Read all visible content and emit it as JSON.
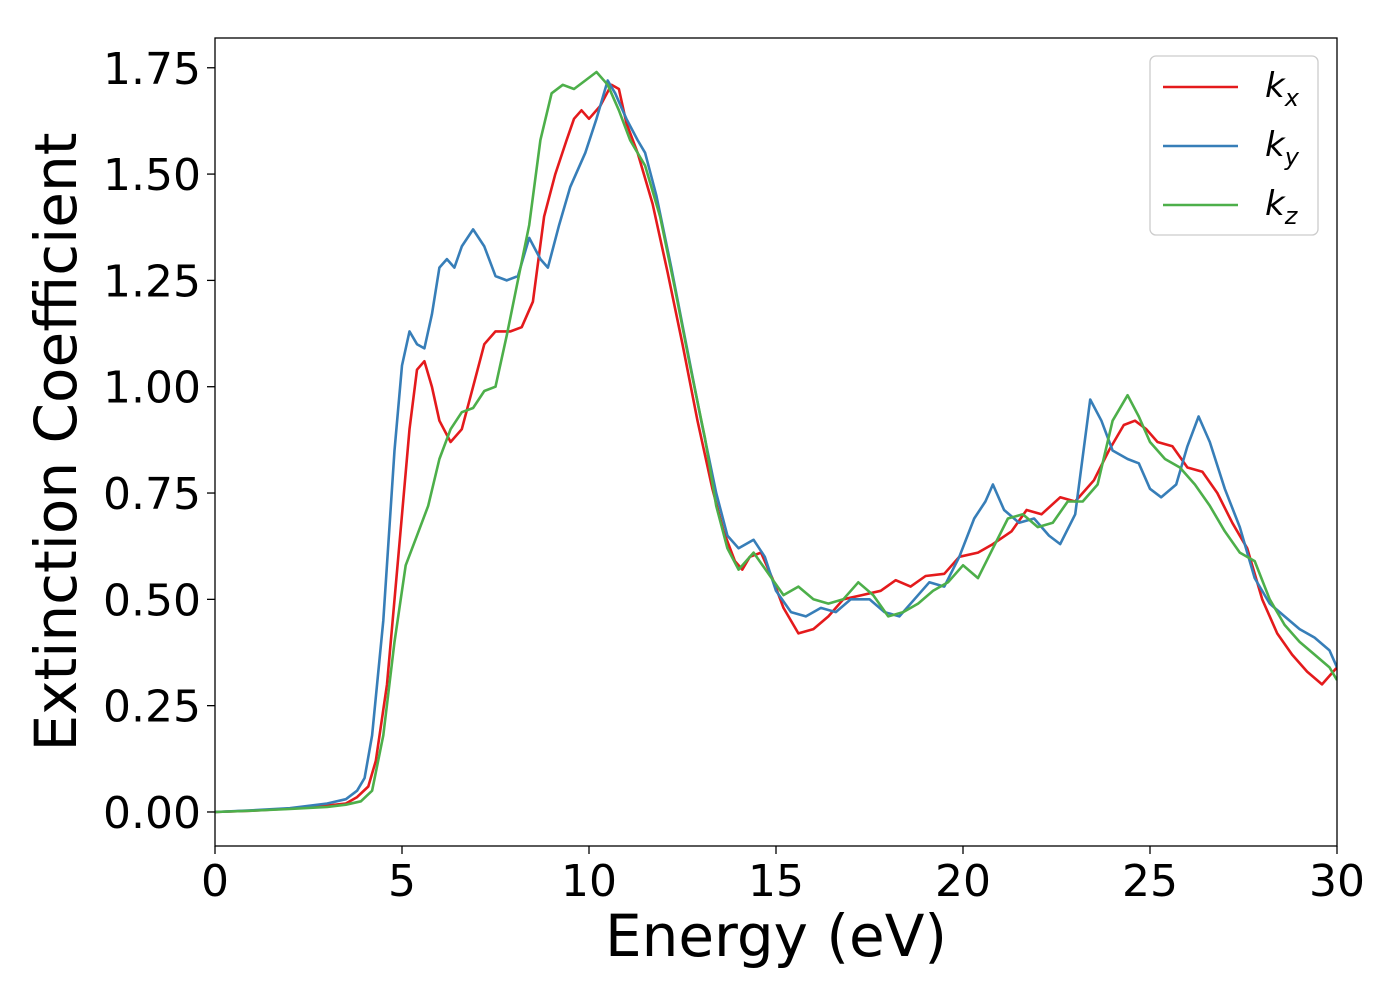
{
  "chart_data": {
    "type": "line",
    "title": "",
    "xlabel": "Energy (eV)",
    "ylabel": "Extinction Coefficient",
    "xlim": [
      0,
      30
    ],
    "ylim": [
      -0.08,
      1.82
    ],
    "xticks": [
      0,
      5,
      10,
      15,
      20,
      25,
      30
    ],
    "yticks": [
      0.0,
      0.25,
      0.5,
      0.75,
      1.0,
      1.25,
      1.5,
      1.75
    ],
    "ytick_labels": [
      "0.00",
      "0.25",
      "0.50",
      "0.75",
      "1.00",
      "1.25",
      "1.50",
      "1.75"
    ],
    "grid": false,
    "legend": "top-right",
    "series": [
      {
        "name": "k_x",
        "label_base": "k",
        "label_sub": "x",
        "color": "#e41a1c",
        "points": [
          [
            0,
            0
          ],
          [
            1,
            0.003
          ],
          [
            2,
            0.008
          ],
          [
            3,
            0.015
          ],
          [
            3.5,
            0.02
          ],
          [
            3.8,
            0.035
          ],
          [
            4.1,
            0.06
          ],
          [
            4.3,
            0.12
          ],
          [
            4.6,
            0.3
          ],
          [
            4.9,
            0.6
          ],
          [
            5.2,
            0.9
          ],
          [
            5.4,
            1.04
          ],
          [
            5.6,
            1.06
          ],
          [
            5.8,
            1.0
          ],
          [
            6.0,
            0.92
          ],
          [
            6.3,
            0.87
          ],
          [
            6.6,
            0.9
          ],
          [
            6.9,
            1.0
          ],
          [
            7.2,
            1.1
          ],
          [
            7.5,
            1.13
          ],
          [
            7.9,
            1.13
          ],
          [
            8.2,
            1.14
          ],
          [
            8.5,
            1.2
          ],
          [
            8.8,
            1.4
          ],
          [
            9.1,
            1.5
          ],
          [
            9.4,
            1.58
          ],
          [
            9.6,
            1.63
          ],
          [
            9.8,
            1.65
          ],
          [
            10.0,
            1.63
          ],
          [
            10.3,
            1.66
          ],
          [
            10.6,
            1.71
          ],
          [
            10.8,
            1.7
          ],
          [
            11.0,
            1.62
          ],
          [
            11.3,
            1.55
          ],
          [
            11.7,
            1.43
          ],
          [
            12.1,
            1.27
          ],
          [
            12.5,
            1.1
          ],
          [
            12.9,
            0.92
          ],
          [
            13.3,
            0.76
          ],
          [
            13.6,
            0.66
          ],
          [
            13.9,
            0.59
          ],
          [
            14.1,
            0.57
          ],
          [
            14.3,
            0.6
          ],
          [
            14.6,
            0.61
          ],
          [
            14.9,
            0.55
          ],
          [
            15.2,
            0.48
          ],
          [
            15.6,
            0.42
          ],
          [
            16.0,
            0.43
          ],
          [
            16.4,
            0.46
          ],
          [
            16.8,
            0.5
          ],
          [
            17.3,
            0.51
          ],
          [
            17.8,
            0.52
          ],
          [
            18.2,
            0.545
          ],
          [
            18.6,
            0.53
          ],
          [
            19.0,
            0.555
          ],
          [
            19.5,
            0.56
          ],
          [
            19.9,
            0.6
          ],
          [
            20.4,
            0.61
          ],
          [
            20.8,
            0.63
          ],
          [
            21.3,
            0.66
          ],
          [
            21.7,
            0.71
          ],
          [
            22.1,
            0.7
          ],
          [
            22.6,
            0.74
          ],
          [
            23.0,
            0.73
          ],
          [
            23.5,
            0.78
          ],
          [
            23.9,
            0.85
          ],
          [
            24.3,
            0.91
          ],
          [
            24.6,
            0.92
          ],
          [
            24.9,
            0.9
          ],
          [
            25.2,
            0.87
          ],
          [
            25.6,
            0.86
          ],
          [
            26.0,
            0.81
          ],
          [
            26.4,
            0.8
          ],
          [
            26.8,
            0.75
          ],
          [
            27.2,
            0.68
          ],
          [
            27.6,
            0.62
          ],
          [
            28.0,
            0.5
          ],
          [
            28.4,
            0.42
          ],
          [
            28.8,
            0.37
          ],
          [
            29.2,
            0.33
          ],
          [
            29.6,
            0.3
          ],
          [
            30,
            0.34
          ]
        ]
      },
      {
        "name": "k_y",
        "label_base": "k",
        "label_sub": "y",
        "color": "#377eb8",
        "points": [
          [
            0,
            0
          ],
          [
            1,
            0.004
          ],
          [
            2,
            0.009
          ],
          [
            3,
            0.02
          ],
          [
            3.5,
            0.03
          ],
          [
            3.8,
            0.05
          ],
          [
            4.0,
            0.08
          ],
          [
            4.2,
            0.18
          ],
          [
            4.5,
            0.45
          ],
          [
            4.8,
            0.85
          ],
          [
            5.0,
            1.05
          ],
          [
            5.2,
            1.13
          ],
          [
            5.4,
            1.1
          ],
          [
            5.6,
            1.09
          ],
          [
            5.8,
            1.17
          ],
          [
            6.0,
            1.28
          ],
          [
            6.2,
            1.3
          ],
          [
            6.4,
            1.28
          ],
          [
            6.6,
            1.33
          ],
          [
            6.9,
            1.37
          ],
          [
            7.2,
            1.33
          ],
          [
            7.5,
            1.26
          ],
          [
            7.8,
            1.25
          ],
          [
            8.1,
            1.26
          ],
          [
            8.4,
            1.35
          ],
          [
            8.7,
            1.3
          ],
          [
            8.9,
            1.28
          ],
          [
            9.2,
            1.38
          ],
          [
            9.5,
            1.47
          ],
          [
            9.9,
            1.55
          ],
          [
            10.2,
            1.63
          ],
          [
            10.5,
            1.72
          ],
          [
            10.7,
            1.69
          ],
          [
            11.0,
            1.63
          ],
          [
            11.3,
            1.58
          ],
          [
            11.5,
            1.55
          ],
          [
            11.8,
            1.45
          ],
          [
            12.2,
            1.28
          ],
          [
            12.6,
            1.1
          ],
          [
            13.0,
            0.92
          ],
          [
            13.4,
            0.75
          ],
          [
            13.7,
            0.65
          ],
          [
            14.0,
            0.62
          ],
          [
            14.4,
            0.64
          ],
          [
            14.7,
            0.6
          ],
          [
            15.0,
            0.52
          ],
          [
            15.4,
            0.47
          ],
          [
            15.8,
            0.46
          ],
          [
            16.2,
            0.48
          ],
          [
            16.6,
            0.47
          ],
          [
            17.0,
            0.5
          ],
          [
            17.5,
            0.5
          ],
          [
            17.9,
            0.47
          ],
          [
            18.3,
            0.46
          ],
          [
            18.7,
            0.5
          ],
          [
            19.1,
            0.54
          ],
          [
            19.5,
            0.53
          ],
          [
            19.9,
            0.6
          ],
          [
            20.3,
            0.69
          ],
          [
            20.6,
            0.73
          ],
          [
            20.8,
            0.77
          ],
          [
            21.1,
            0.71
          ],
          [
            21.5,
            0.68
          ],
          [
            21.9,
            0.69
          ],
          [
            22.3,
            0.65
          ],
          [
            22.6,
            0.63
          ],
          [
            23.0,
            0.7
          ],
          [
            23.4,
            0.97
          ],
          [
            23.7,
            0.92
          ],
          [
            24.0,
            0.85
          ],
          [
            24.4,
            0.83
          ],
          [
            24.7,
            0.82
          ],
          [
            25.0,
            0.76
          ],
          [
            25.3,
            0.74
          ],
          [
            25.7,
            0.77
          ],
          [
            26.0,
            0.86
          ],
          [
            26.3,
            0.93
          ],
          [
            26.6,
            0.87
          ],
          [
            27.0,
            0.76
          ],
          [
            27.4,
            0.67
          ],
          [
            27.8,
            0.55
          ],
          [
            28.2,
            0.49
          ],
          [
            28.6,
            0.46
          ],
          [
            29.0,
            0.43
          ],
          [
            29.4,
            0.41
          ],
          [
            29.8,
            0.38
          ],
          [
            30,
            0.34
          ]
        ]
      },
      {
        "name": "k_z",
        "label_base": "k",
        "label_sub": "z",
        "color": "#4daf4a",
        "points": [
          [
            0,
            0
          ],
          [
            1,
            0.003
          ],
          [
            2,
            0.007
          ],
          [
            3,
            0.012
          ],
          [
            3.5,
            0.017
          ],
          [
            3.9,
            0.025
          ],
          [
            4.2,
            0.05
          ],
          [
            4.5,
            0.18
          ],
          [
            4.8,
            0.4
          ],
          [
            5.1,
            0.58
          ],
          [
            5.4,
            0.65
          ],
          [
            5.7,
            0.72
          ],
          [
            6.0,
            0.83
          ],
          [
            6.3,
            0.9
          ],
          [
            6.6,
            0.94
          ],
          [
            6.9,
            0.95
          ],
          [
            7.2,
            0.99
          ],
          [
            7.5,
            1.0
          ],
          [
            7.8,
            1.12
          ],
          [
            8.1,
            1.25
          ],
          [
            8.4,
            1.38
          ],
          [
            8.7,
            1.58
          ],
          [
            9.0,
            1.69
          ],
          [
            9.3,
            1.71
          ],
          [
            9.6,
            1.7
          ],
          [
            9.9,
            1.72
          ],
          [
            10.2,
            1.74
          ],
          [
            10.5,
            1.71
          ],
          [
            10.8,
            1.65
          ],
          [
            11.1,
            1.58
          ],
          [
            11.5,
            1.52
          ],
          [
            11.9,
            1.4
          ],
          [
            12.3,
            1.23
          ],
          [
            12.7,
            1.05
          ],
          [
            13.1,
            0.88
          ],
          [
            13.4,
            0.72
          ],
          [
            13.7,
            0.62
          ],
          [
            14.0,
            0.57
          ],
          [
            14.4,
            0.61
          ],
          [
            14.8,
            0.56
          ],
          [
            15.2,
            0.51
          ],
          [
            15.6,
            0.53
          ],
          [
            16.0,
            0.5
          ],
          [
            16.4,
            0.49
          ],
          [
            16.8,
            0.5
          ],
          [
            17.2,
            0.54
          ],
          [
            17.6,
            0.51
          ],
          [
            18.0,
            0.46
          ],
          [
            18.4,
            0.47
          ],
          [
            18.8,
            0.49
          ],
          [
            19.2,
            0.52
          ],
          [
            19.6,
            0.54
          ],
          [
            20.0,
            0.58
          ],
          [
            20.4,
            0.55
          ],
          [
            20.8,
            0.62
          ],
          [
            21.2,
            0.69
          ],
          [
            21.6,
            0.7
          ],
          [
            22.0,
            0.67
          ],
          [
            22.4,
            0.68
          ],
          [
            22.8,
            0.73
          ],
          [
            23.2,
            0.73
          ],
          [
            23.6,
            0.77
          ],
          [
            24.0,
            0.92
          ],
          [
            24.4,
            0.98
          ],
          [
            24.7,
            0.93
          ],
          [
            25.0,
            0.87
          ],
          [
            25.4,
            0.83
          ],
          [
            25.8,
            0.81
          ],
          [
            26.2,
            0.77
          ],
          [
            26.6,
            0.72
          ],
          [
            27.0,
            0.66
          ],
          [
            27.4,
            0.61
          ],
          [
            27.8,
            0.59
          ],
          [
            28.2,
            0.5
          ],
          [
            28.6,
            0.44
          ],
          [
            29.0,
            0.4
          ],
          [
            29.4,
            0.37
          ],
          [
            29.8,
            0.34
          ],
          [
            30,
            0.31
          ]
        ]
      }
    ]
  }
}
